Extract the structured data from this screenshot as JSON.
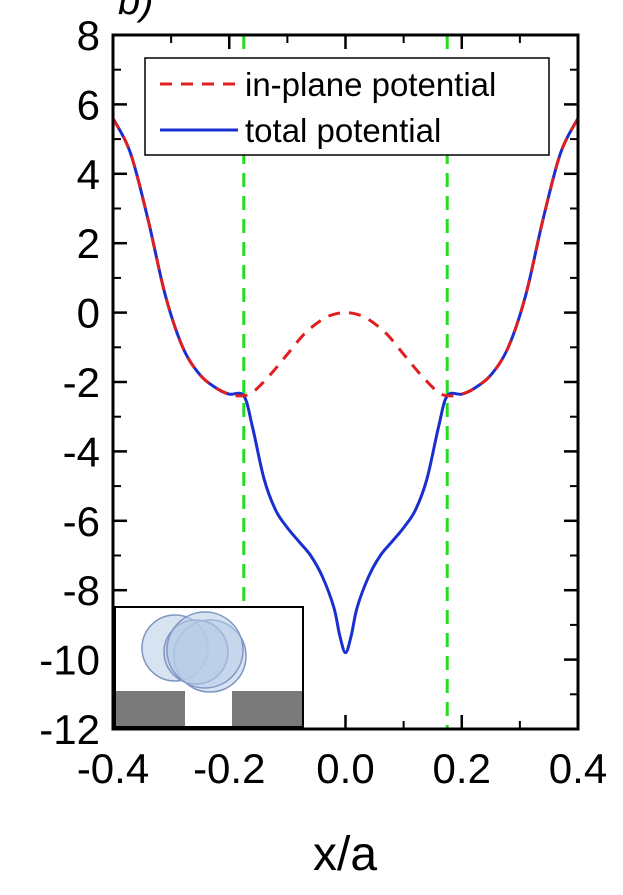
{
  "chart_data": {
    "type": "line",
    "panel_label": "b)",
    "xlabel": "x/a",
    "ylabel": "",
    "xlim": [
      -0.4,
      0.4
    ],
    "ylim": [
      -12,
      8
    ],
    "x_ticks": [
      -0.4,
      -0.2,
      0.0,
      0.2,
      0.4
    ],
    "x_tick_labels": [
      "-0.4",
      "-0.2",
      "0.0",
      "0.2",
      "0.4"
    ],
    "y_ticks": [
      8,
      6,
      4,
      2,
      0,
      -2,
      -4,
      -6,
      -8,
      -10,
      -12
    ],
    "y_tick_labels": [
      "8",
      "6",
      "4",
      "2",
      "0",
      "-2",
      "-4",
      "-6",
      "-8",
      "-10",
      "-12"
    ],
    "grid": false,
    "legend_position": "top",
    "vertical_markers": [
      -0.175,
      0.175
    ],
    "vertical_marker_color": "#22dd22",
    "series": [
      {
        "name": "in-plane potential",
        "style": "dashed",
        "color": "#e02020",
        "x": [
          -0.4,
          -0.37,
          -0.34,
          -0.31,
          -0.28,
          -0.25,
          -0.22,
          -0.2,
          -0.18,
          -0.16,
          -0.13,
          -0.1,
          -0.07,
          -0.04,
          -0.02,
          0.0,
          0.02,
          0.04,
          0.07,
          0.1,
          0.13,
          0.16,
          0.18,
          0.2,
          0.22,
          0.25,
          0.28,
          0.31,
          0.34,
          0.37,
          0.4
        ],
        "y": [
          5.6,
          4.6,
          2.7,
          0.5,
          -1.0,
          -1.8,
          -2.2,
          -2.35,
          -2.4,
          -2.3,
          -1.8,
          -1.2,
          -0.6,
          -0.2,
          -0.05,
          0.0,
          -0.05,
          -0.2,
          -0.6,
          -1.2,
          -1.8,
          -2.3,
          -2.4,
          -2.35,
          -2.2,
          -1.8,
          -1.0,
          0.5,
          2.7,
          4.6,
          5.6
        ]
      },
      {
        "name": "total potential",
        "style": "solid",
        "color": "#1a2fd0",
        "x": [
          -0.4,
          -0.37,
          -0.34,
          -0.31,
          -0.28,
          -0.25,
          -0.22,
          -0.2,
          -0.175,
          -0.16,
          -0.14,
          -0.12,
          -0.1,
          -0.08,
          -0.06,
          -0.04,
          -0.02,
          -0.01,
          0.0,
          0.01,
          0.02,
          0.04,
          0.06,
          0.08,
          0.1,
          0.12,
          0.14,
          0.16,
          0.175,
          0.2,
          0.22,
          0.25,
          0.28,
          0.31,
          0.34,
          0.37,
          0.4
        ],
        "y": [
          5.6,
          4.6,
          2.7,
          0.5,
          -1.0,
          -1.8,
          -2.2,
          -2.35,
          -2.4,
          -3.3,
          -4.8,
          -5.7,
          -6.2,
          -6.6,
          -7.0,
          -7.6,
          -8.5,
          -9.3,
          -9.8,
          -9.3,
          -8.5,
          -7.6,
          -7.0,
          -6.6,
          -6.2,
          -5.7,
          -4.8,
          -3.3,
          -2.4,
          -2.35,
          -2.2,
          -1.8,
          -1.0,
          0.5,
          2.7,
          4.6,
          5.6
        ]
      }
    ]
  },
  "inset": {
    "colors": {
      "block": "#7a7a7a",
      "ball_fill": "#b8cce8",
      "ball_stroke": "#7f97c2",
      "border": "#000000"
    }
  }
}
